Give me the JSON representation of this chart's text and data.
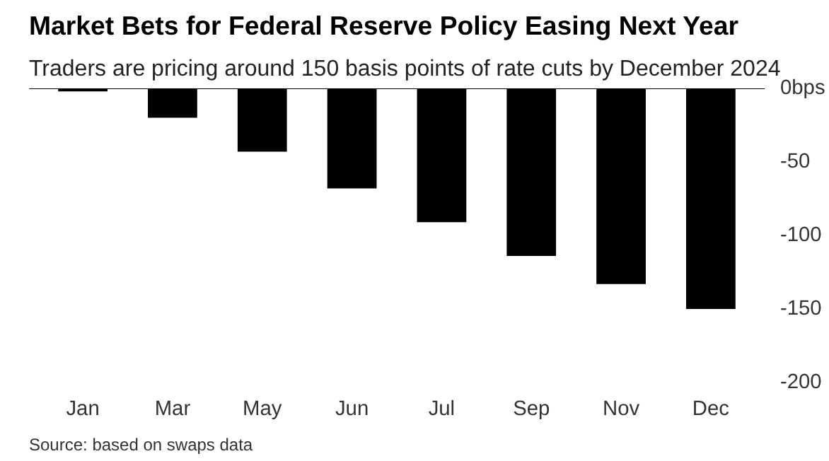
{
  "chart_data": {
    "type": "bar",
    "title": "Market Bets for Federal Reserve Policy Easing Next Year",
    "subtitle": "Traders are pricing around 150 basis points of rate cuts by December 2024",
    "annotations": [
      "Source: based on swaps data"
    ],
    "categories": [
      "Jan",
      "Mar",
      "May",
      "Jun",
      "Jul",
      "Sep",
      "Nov",
      "Dec"
    ],
    "values": [
      -2,
      -20,
      -43,
      -68,
      -91,
      -114,
      -133,
      -150
    ],
    "color": "#000000",
    "ylim": [
      -200,
      0
    ],
    "yticks": [
      {
        "value": 0,
        "label": "0bps"
      },
      -50,
      -100,
      -150,
      -200
    ],
    "ref_lines": [
      {
        "axis": "y",
        "value": 0,
        "color": "#000000"
      }
    ],
    "grid": false
  }
}
